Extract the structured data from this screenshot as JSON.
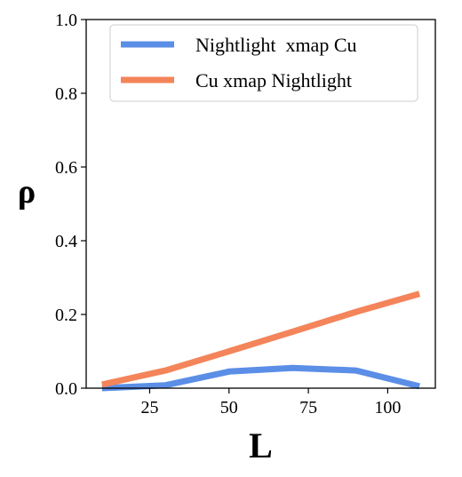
{
  "chart_data": {
    "type": "line",
    "xlabel": "L",
    "ylabel": "ρ",
    "xlim": [
      5,
      115
    ],
    "ylim": [
      0,
      1.0
    ],
    "xticks": [
      25,
      50,
      75,
      100
    ],
    "yticks": [
      0.0,
      0.2,
      0.4,
      0.6,
      0.8,
      1.0
    ],
    "xtick_labels": [
      "25",
      "50",
      "75",
      "100"
    ],
    "ytick_labels": [
      "0.0",
      "0.2",
      "0.4",
      "0.6",
      "0.8",
      "1.0"
    ],
    "x": [
      10,
      30,
      50,
      70,
      90,
      110
    ],
    "series": [
      {
        "name": "Nightlight  xmap Cu",
        "color": "#5b8ee6",
        "values": [
          0.0,
          0.008,
          0.045,
          0.055,
          0.048,
          0.005
        ]
      },
      {
        "name": "Cu xmap Nightlight",
        "color": "#f4845a",
        "values": [
          0.01,
          0.048,
          0.1,
          0.153,
          0.207,
          0.256
        ]
      }
    ],
    "legend_position": "top-right",
    "grid": false
  }
}
